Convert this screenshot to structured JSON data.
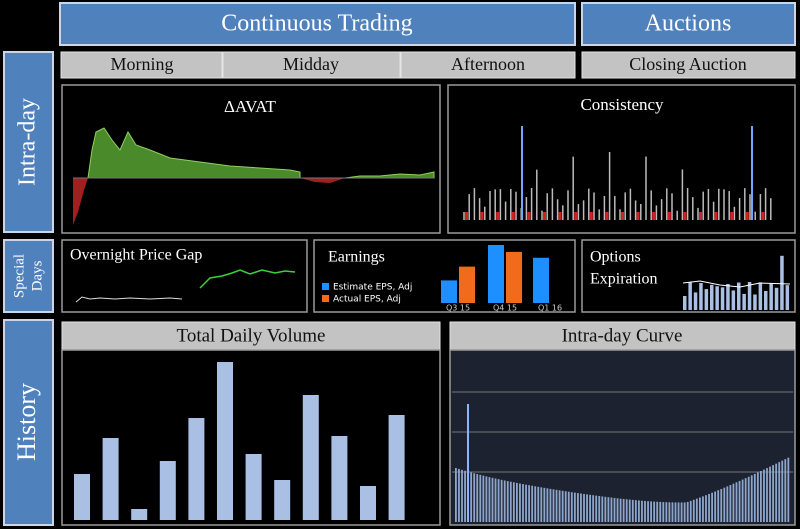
{
  "columns": {
    "continuous": "Continuous Trading",
    "auctions": "Auctions"
  },
  "periods": [
    "Morning",
    "Midday",
    "Afternoon",
    "Closing Auction"
  ],
  "sections": {
    "intraday": "Intra-day",
    "special": [
      "Special",
      "Days"
    ],
    "history": "History"
  },
  "panels": {
    "avat": {
      "title": "ΔAVAT"
    },
    "consistency": {
      "title": "Consistency"
    },
    "overnight": {
      "title": "Overnight Price Gap"
    },
    "earnings": {
      "title": "Earnings",
      "categories": [
        "Q3 15",
        "Q4 15",
        "Q1 16"
      ],
      "series": [
        {
          "name": "Estimate EPS, Adj",
          "color": "#1e8fff",
          "values": [
            23,
            59,
            46
          ]
        },
        {
          "name": "Actual EPS, Adj",
          "color": "#f26b1d",
          "values": [
            37,
            52,
            null
          ]
        }
      ]
    },
    "options": {
      "title": [
        "Options",
        "Expiration"
      ]
    },
    "volume": {
      "title": "Total Daily Volume",
      "color": "#a9c0e4",
      "values": [
        46,
        82,
        11,
        59,
        102,
        158,
        66,
        40,
        125,
        84,
        34,
        105
      ]
    },
    "curve": {
      "title": "Intra-day Curve"
    }
  }
}
